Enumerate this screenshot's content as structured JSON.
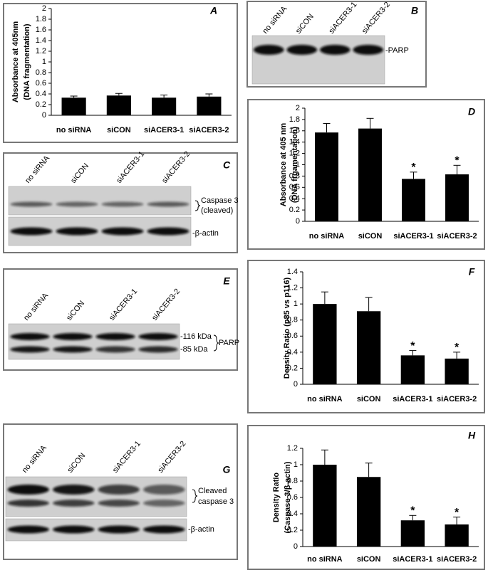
{
  "chart_data": [
    {
      "type": "bar",
      "panel": "A",
      "ylabel": [
        "Absorbance at 405nm",
        "(DNA fragmentation)"
      ],
      "categories": [
        "no siRNA",
        "siCON",
        "siACER3-1",
        "siACER3-2"
      ],
      "values": [
        0.33,
        0.37,
        0.33,
        0.35
      ],
      "errors": [
        0.03,
        0.04,
        0.05,
        0.05
      ],
      "color": "#000000",
      "ylim": [
        0,
        2
      ],
      "yticks": [
        0,
        0.2,
        0.4,
        0.6,
        0.8,
        1,
        1.2,
        1.4,
        1.6,
        1.8,
        2
      ]
    },
    {
      "type": "bar",
      "panel": "D",
      "ylabel": [
        "Absorbance at 405 nm",
        "(DNA frgamentation)"
      ],
      "categories": [
        "no siRNA",
        "siCON",
        "siACER3-1",
        "siACER3-2"
      ],
      "values": [
        1.57,
        1.64,
        0.75,
        0.83
      ],
      "errors": [
        0.16,
        0.18,
        0.12,
        0.16
      ],
      "markers": [
        null,
        null,
        "*",
        "*"
      ],
      "color": "#000000",
      "ylim": [
        0,
        2
      ],
      "yticks": [
        0,
        0.2,
        0.4,
        0.6,
        0.8,
        1,
        1.2,
        1.4,
        1.6,
        1.8,
        2
      ]
    },
    {
      "type": "bar",
      "panel": "F",
      "ylabel": [
        "Density Ratio (p85 vs p116)"
      ],
      "categories": [
        "no siRNA",
        "siCON",
        "siACER3-1",
        "siACER3-2"
      ],
      "values": [
        1.0,
        0.91,
        0.36,
        0.32
      ],
      "errors": [
        0.15,
        0.17,
        0.06,
        0.08
      ],
      "markers": [
        null,
        null,
        "*",
        "*"
      ],
      "color": "#000000",
      "ylim": [
        0,
        1.4
      ],
      "yticks": [
        0,
        0.2,
        0.4,
        0.6,
        0.8,
        1,
        1.2,
        1.4
      ]
    },
    {
      "type": "bar",
      "panel": "H",
      "ylabel": [
        "Density Ratio",
        "(Caspase 3/β-actin)"
      ],
      "categories": [
        "no siRNA",
        "siCON",
        "siACER3-1",
        "siACER3-2"
      ],
      "values": [
        1.0,
        0.85,
        0.32,
        0.27
      ],
      "errors": [
        0.18,
        0.17,
        0.06,
        0.09
      ],
      "markers": [
        null,
        null,
        "*",
        "*"
      ],
      "color": "#000000",
      "ylim": [
        0,
        1.2
      ],
      "yticks": [
        0,
        0.2,
        0.4,
        0.6,
        0.8,
        1,
        1.2
      ]
    }
  ],
  "blots": [
    {
      "panel": "B",
      "lanes": [
        "no siRNA",
        "siCON",
        "siACER3-1",
        "siACER3-2"
      ],
      "bands": [
        "-PARP"
      ]
    },
    {
      "panel": "C",
      "lanes": [
        "no siRNA",
        "siCON",
        "siACER3-1",
        "siACER3-2"
      ],
      "bands": [
        "Caspase 3",
        "(cleaved)",
        "-β-actin"
      ]
    },
    {
      "panel": "E",
      "lanes": [
        "no siRNA",
        "siCON",
        "siACER3-1",
        "siACER3-2"
      ],
      "bands": [
        "-116 kDa",
        "-85 kDa",
        "PARP"
      ]
    },
    {
      "panel": "G",
      "lanes": [
        "no siRNA",
        "siCON",
        "siACER3-1",
        "siACER3-2"
      ],
      "bands": [
        "Cleaved",
        "caspase 3",
        "-β-actin"
      ]
    }
  ]
}
